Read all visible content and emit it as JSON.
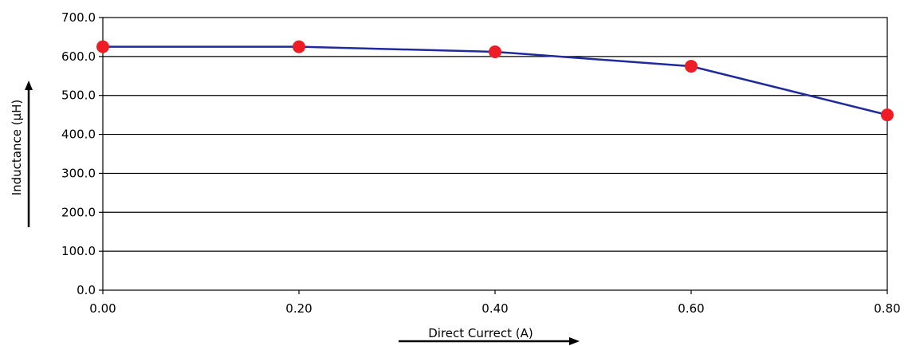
{
  "chart_data": {
    "type": "line",
    "title": "",
    "xlabel": "Direct Currect (A)",
    "ylabel": "Inductance (μH)",
    "x": [
      0.0,
      0.2,
      0.4,
      0.6,
      0.8
    ],
    "x_tick_labels": [
      "0.00",
      "0.20",
      "0.40",
      "0.60",
      "0.80"
    ],
    "y_tick_labels": [
      "0.0",
      "100.0",
      "200.0",
      "300.0",
      "400.0",
      "500.0",
      "600.0",
      "700.0"
    ],
    "xlim": [
      0,
      0.8
    ],
    "ylim": [
      0,
      700
    ],
    "y_ticks": [
      0,
      100,
      200,
      300,
      400,
      500,
      600,
      700
    ],
    "grid": {
      "horizontal": true,
      "vertical": false
    },
    "legend": "none",
    "series": [
      {
        "values": [
          625,
          625,
          612,
          575,
          450
        ],
        "line_path": [
          [
            0.0,
            625
          ],
          [
            0.2,
            625
          ],
          [
            0.4,
            612
          ],
          [
            0.6,
            575
          ],
          [
            0.8,
            450
          ]
        ],
        "line_color": "#1f2a9c",
        "marker_color": "#ee1c25"
      }
    ]
  }
}
